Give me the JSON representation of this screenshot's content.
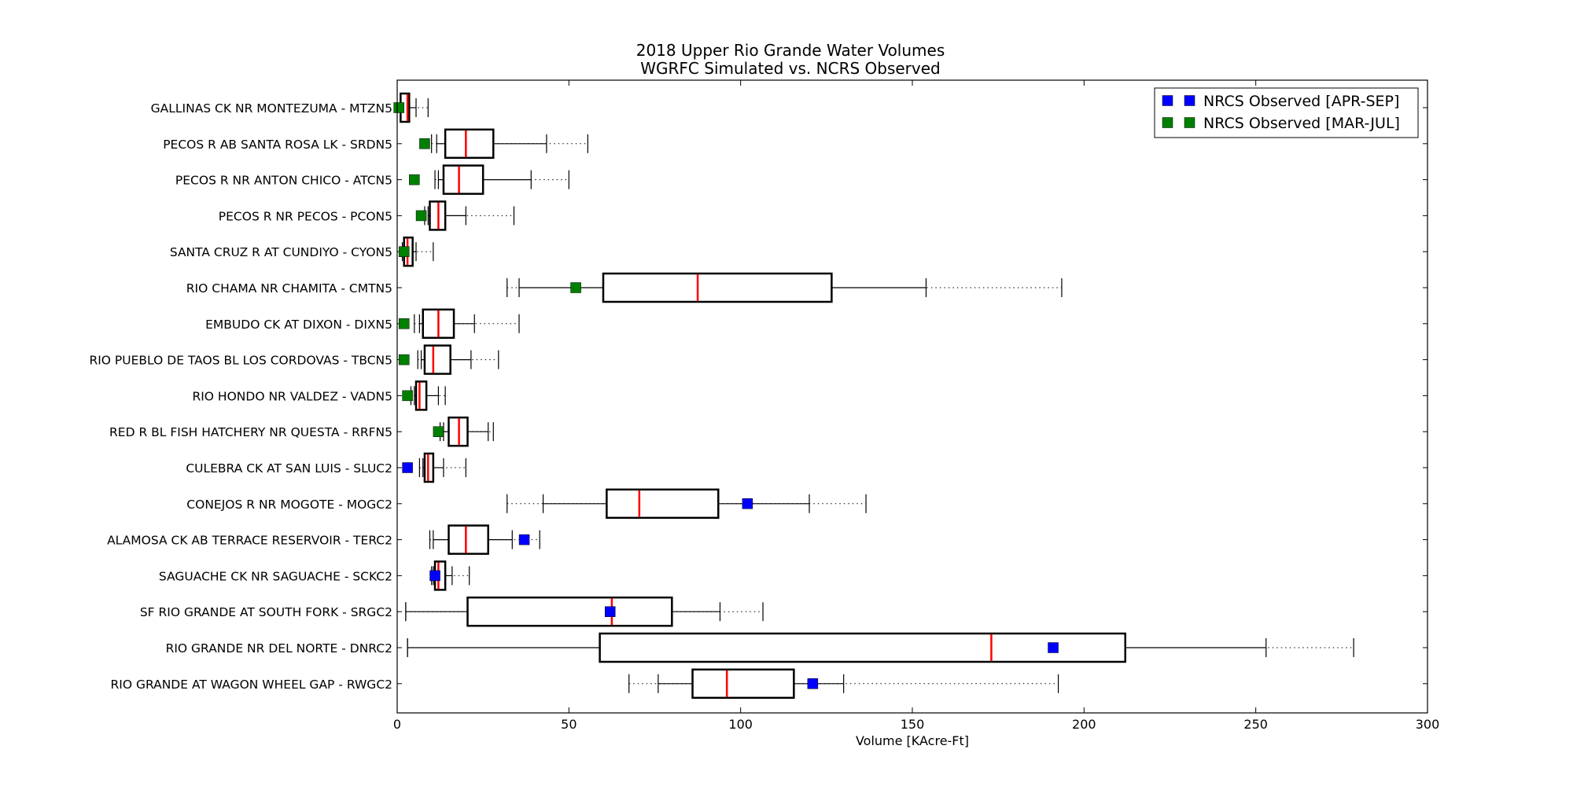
{
  "chart_data": {
    "type": "boxplot",
    "title": "2018 Upper Rio Grande Water Volumes",
    "subtitle": "WGRFC Simulated vs. NCRS Observed",
    "xlabel": "Volume [KAcre-Ft]",
    "xlim": [
      0,
      300
    ],
    "xticks": [
      0,
      50,
      100,
      150,
      200,
      250,
      300
    ],
    "grid": false,
    "legend_position": "top-right",
    "series": [
      {
        "name": "NRCS Observed [APR-SEP]",
        "color": "#0000ff"
      },
      {
        "name": "NRCS Observed [MAR-JUL]",
        "color": "#008000"
      }
    ],
    "median_color": "#ff0000",
    "boxes": [
      {
        "label": "GALLINAS CK NR MONTEZUMA  - MTZN5",
        "wmin": 1.5,
        "wlo": 1,
        "q1": 1,
        "median": 3,
        "q3": 3.5,
        "whi": 5.5,
        "wmax": 9,
        "obs": 0.5,
        "series": 1
      },
      {
        "label": "PECOS R AB SANTA ROSA LK - SRDN5",
        "wmin": 10,
        "wlo": 11.5,
        "q1": 14,
        "median": 20,
        "q3": 28,
        "whi": 43.5,
        "wmax": 55.5,
        "obs": 8,
        "series": 1
      },
      {
        "label": "PECOS R NR ANTON CHICO - ATCN5",
        "wmin": 11,
        "wlo": 12,
        "q1": 13.5,
        "median": 18,
        "q3": 25,
        "whi": 39,
        "wmax": 50,
        "obs": 5,
        "series": 1
      },
      {
        "label": "PECOS R NR PECOS - PCON5",
        "wmin": 8,
        "wlo": 9,
        "q1": 9.5,
        "median": 12,
        "q3": 14,
        "whi": 20,
        "wmax": 34,
        "obs": 7,
        "series": 1
      },
      {
        "label": "SANTA CRUZ R AT CUNDIYO - CYON5",
        "wmin": 1.5,
        "wlo": 2,
        "q1": 2,
        "median": 3,
        "q3": 4.5,
        "whi": 5.5,
        "wmax": 10.5,
        "obs": 2,
        "series": 1
      },
      {
        "label": "RIO CHAMA NR CHAMITA  - CMTN5",
        "wmin": 32,
        "wlo": 35.5,
        "q1": 60,
        "median": 87.5,
        "q3": 126.5,
        "whi": 154,
        "wmax": 193.5,
        "obs": 52,
        "series": 1
      },
      {
        "label": "EMBUDO CK AT DIXON - DIXN5",
        "wmin": 5,
        "wlo": 6.5,
        "q1": 7.5,
        "median": 12,
        "q3": 16.5,
        "whi": 22.5,
        "wmax": 35.5,
        "obs": 2,
        "series": 1
      },
      {
        "label": "RIO PUEBLO DE TAOS BL LOS CORDOVAS - TBCN5",
        "wmin": 6,
        "wlo": 7,
        "q1": 8,
        "median": 10.5,
        "q3": 15.5,
        "whi": 21.5,
        "wmax": 29.5,
        "obs": 2,
        "series": 1
      },
      {
        "label": "RIO HONDO NR VALDEZ - VADN5",
        "wmin": 4,
        "wlo": 5,
        "q1": 5.5,
        "median": 6.5,
        "q3": 8.5,
        "whi": 12,
        "wmax": 14,
        "obs": 3,
        "series": 1
      },
      {
        "label": "RED R BL FISH HATCHERY NR QUESTA - RRFN5",
        "wmin": 12.5,
        "wlo": 13.5,
        "q1": 15,
        "median": 18,
        "q3": 20.5,
        "whi": 26.5,
        "wmax": 28,
        "obs": 12,
        "series": 1
      },
      {
        "label": "CULEBRA CK AT SAN LUIS - SLUC2",
        "wmin": 6.5,
        "wlo": 7.5,
        "q1": 8,
        "median": 9,
        "q3": 10.5,
        "whi": 13.5,
        "wmax": 20,
        "obs": 3,
        "series": 0
      },
      {
        "label": "CONEJOS R NR MOGOTE - MOGC2",
        "wmin": 32,
        "wlo": 42.5,
        "q1": 61,
        "median": 70.5,
        "q3": 93.5,
        "whi": 120,
        "wmax": 136.5,
        "obs": 102,
        "series": 0
      },
      {
        "label": "ALAMOSA CK AB TERRACE RESERVOIR  - TERC2",
        "wmin": 9.5,
        "wlo": 10.5,
        "q1": 15,
        "median": 20,
        "q3": 26.5,
        "whi": 33.5,
        "wmax": 41.5,
        "obs": 37,
        "series": 0
      },
      {
        "label": "SAGUACHE CK NR SAGUACHE  - SCKC2",
        "wmin": 10,
        "wlo": 10.5,
        "q1": 11,
        "median": 12,
        "q3": 14,
        "whi": 16,
        "wmax": 21,
        "obs": 11,
        "series": 0
      },
      {
        "label": "SF RIO GRANDE AT SOUTH FORK  - SRGC2",
        "wmin": 2.5,
        "wlo": 2.5,
        "q1": 20.5,
        "median": 62.5,
        "q3": 80,
        "whi": 94,
        "wmax": 106.5,
        "obs": 62,
        "series": 0
      },
      {
        "label": "RIO GRANDE NR DEL NORTE - DNRC2",
        "wmin": 3,
        "wlo": 3,
        "q1": 59,
        "median": 173,
        "q3": 212,
        "whi": 253,
        "wmax": 278.5,
        "obs": 191,
        "series": 0
      },
      {
        "label": "RIO GRANDE AT WAGON WHEEL GAP - RWGC2",
        "wmin": 67.5,
        "wlo": 76,
        "q1": 86,
        "median": 96,
        "q3": 115.5,
        "whi": 130,
        "wmax": 192.5,
        "obs": 121,
        "series": 0
      }
    ]
  }
}
